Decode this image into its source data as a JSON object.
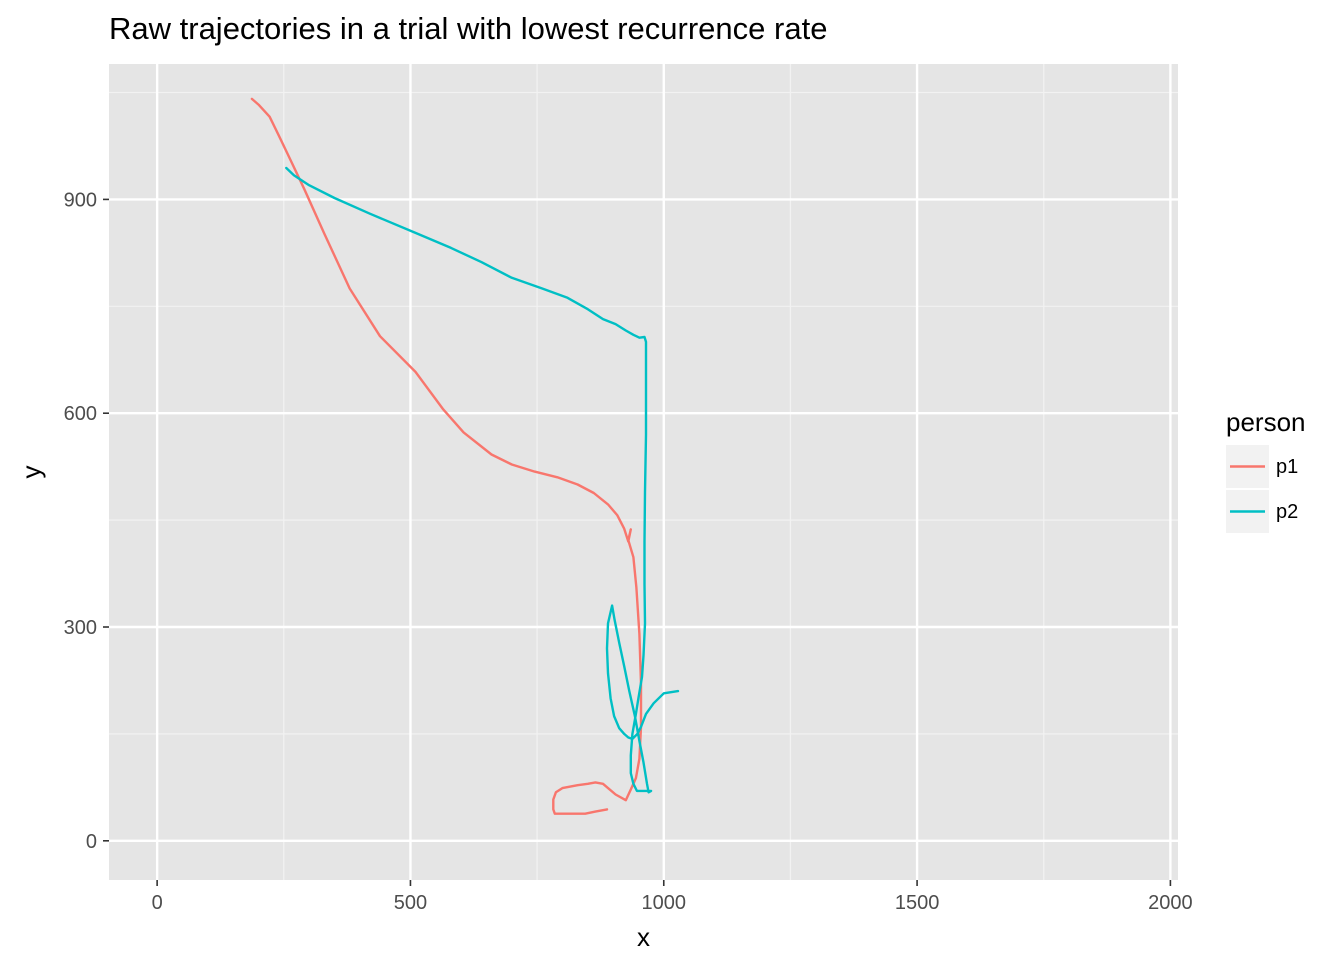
{
  "chart_data": {
    "type": "line",
    "title": "Raw trajectories in a trial with lowest recurrence rate",
    "xlabel": "x",
    "ylabel": "y",
    "xlim": [
      -95,
      2015
    ],
    "ylim": [
      -55,
      1090
    ],
    "x_ticks": [
      0,
      500,
      1000,
      1500,
      2000
    ],
    "x_tick_labels": [
      "0",
      "500",
      "1000",
      "1500",
      "2000"
    ],
    "y_ticks": [
      0,
      300,
      600,
      900
    ],
    "y_tick_labels": [
      "0",
      "300",
      "600",
      "900"
    ],
    "grid": true,
    "panel_background": "#e5e5e5",
    "legend": {
      "title": "person",
      "position": "right"
    },
    "series": [
      {
        "name": "p1",
        "color": "#f8766d",
        "points": [
          [
            187,
            1041
          ],
          [
            200,
            1033
          ],
          [
            222,
            1016
          ],
          [
            240,
            990
          ],
          [
            260,
            960
          ],
          [
            290,
            915
          ],
          [
            330,
            852
          ],
          [
            380,
            775
          ],
          [
            440,
            708
          ],
          [
            510,
            658
          ],
          [
            565,
            605
          ],
          [
            605,
            573
          ],
          [
            660,
            542
          ],
          [
            700,
            528
          ],
          [
            745,
            518
          ],
          [
            790,
            510
          ],
          [
            830,
            500
          ],
          [
            862,
            488
          ],
          [
            890,
            472
          ],
          [
            908,
            457
          ],
          [
            922,
            438
          ],
          [
            930,
            420
          ],
          [
            935,
            437
          ],
          [
            930,
            422
          ],
          [
            940,
            398
          ],
          [
            946,
            355
          ],
          [
            952,
            290
          ],
          [
            955,
            220
          ],
          [
            955,
            160
          ],
          [
            952,
            115
          ],
          [
            945,
            88
          ],
          [
            935,
            72
          ],
          [
            925,
            57
          ],
          [
            905,
            65
          ],
          [
            890,
            74
          ],
          [
            880,
            80
          ],
          [
            865,
            82
          ],
          [
            850,
            80
          ],
          [
            830,
            78
          ],
          [
            800,
            74
          ],
          [
            787,
            68
          ],
          [
            782,
            58
          ],
          [
            782,
            44
          ],
          [
            785,
            38
          ],
          [
            800,
            38
          ],
          [
            825,
            38
          ],
          [
            845,
            38
          ],
          [
            865,
            41
          ],
          [
            888,
            44
          ]
        ]
      },
      {
        "name": "p2",
        "color": "#00bfc4",
        "points": [
          [
            255,
            944
          ],
          [
            270,
            934
          ],
          [
            300,
            920
          ],
          [
            350,
            902
          ],
          [
            420,
            880
          ],
          [
            510,
            853
          ],
          [
            580,
            832
          ],
          [
            640,
            812
          ],
          [
            700,
            790
          ],
          [
            760,
            775
          ],
          [
            810,
            762
          ],
          [
            850,
            746
          ],
          [
            880,
            732
          ],
          [
            905,
            725
          ],
          [
            925,
            716
          ],
          [
            940,
            710
          ],
          [
            952,
            706
          ],
          [
            962,
            707
          ],
          [
            965,
            700
          ],
          [
            965,
            650
          ],
          [
            965,
            570
          ],
          [
            963,
            490
          ],
          [
            962,
            420
          ],
          [
            962,
            360
          ],
          [
            963,
            305
          ],
          [
            960,
            260
          ],
          [
            957,
            230
          ],
          [
            950,
            200
          ],
          [
            945,
            178
          ],
          [
            938,
            150
          ],
          [
            935,
            120
          ],
          [
            935,
            95
          ],
          [
            940,
            80
          ],
          [
            947,
            70
          ],
          [
            960,
            70
          ],
          [
            975,
            70
          ],
          [
            970,
            68
          ],
          [
            967,
            80
          ],
          [
            960,
            110
          ],
          [
            952,
            140
          ],
          [
            943,
            175
          ],
          [
            932,
            210
          ],
          [
            922,
            245
          ],
          [
            912,
            278
          ],
          [
            903,
            310
          ],
          [
            898,
            330
          ],
          [
            890,
            305
          ],
          [
            888,
            270
          ],
          [
            890,
            235
          ],
          [
            895,
            200
          ],
          [
            902,
            175
          ],
          [
            912,
            158
          ],
          [
            922,
            150
          ],
          [
            930,
            145
          ],
          [
            938,
            143
          ],
          [
            948,
            150
          ],
          [
            955,
            160
          ],
          [
            965,
            178
          ],
          [
            980,
            193
          ],
          [
            1000,
            207
          ],
          [
            1028,
            210
          ]
        ]
      }
    ]
  }
}
